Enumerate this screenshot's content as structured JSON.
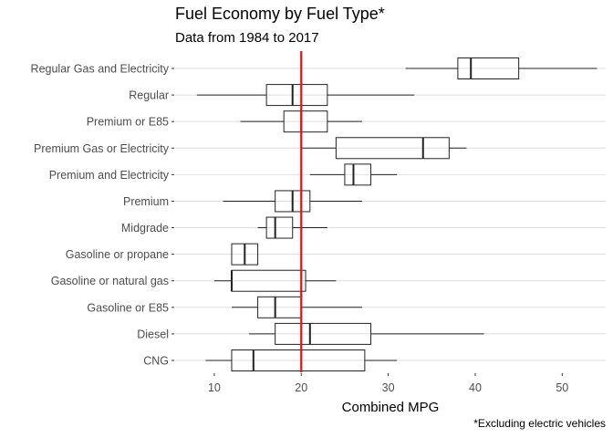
{
  "chart_data": {
    "type": "boxplot",
    "title": "Fuel Economy by Fuel Type*",
    "subtitle": "Data from 1984 to 2017",
    "xlabel": "Combined MPG",
    "ylabel": "",
    "caption": "*Excluding electric vehicles",
    "xlim": [
      5.5,
      55
    ],
    "xticks": [
      10,
      20,
      30,
      40,
      50
    ],
    "grid": "horizontal",
    "reference_line": {
      "value": 20,
      "color": "#e8100a"
    },
    "categories": [
      "Regular Gas and Electricity",
      "Regular",
      "Premium or E85",
      "Premium Gas or Electricity",
      "Premium and Electricity",
      "Premium",
      "Midgrade",
      "Gasoline or propane",
      "Gasoline or natural gas",
      "Gasoline or E85",
      "Diesel",
      "CNG"
    ],
    "boxes": [
      {
        "category": "Regular Gas and Electricity",
        "min": 32,
        "q1": 38,
        "median": 39.5,
        "q3": 45,
        "max": 54
      },
      {
        "category": "Regular",
        "min": 8,
        "q1": 16,
        "median": 19,
        "q3": 23,
        "max": 33
      },
      {
        "category": "Premium or E85",
        "min": 13,
        "q1": 18,
        "median": 20,
        "q3": 23,
        "max": 27
      },
      {
        "category": "Premium Gas or Electricity",
        "min": 20,
        "q1": 24,
        "median": 34,
        "q3": 37,
        "max": 39
      },
      {
        "category": "Premium and Electricity",
        "min": 21,
        "q1": 25,
        "median": 26,
        "q3": 28,
        "max": 31
      },
      {
        "category": "Premium",
        "min": 11,
        "q1": 17,
        "median": 19,
        "q3": 21,
        "max": 27
      },
      {
        "category": "Midgrade",
        "min": 15,
        "q1": 16,
        "median": 17,
        "q3": 19,
        "max": 23
      },
      {
        "category": "Gasoline or propane",
        "min": 12,
        "q1": 12,
        "median": 13.5,
        "q3": 15,
        "max": 15
      },
      {
        "category": "Gasoline or natural gas",
        "min": 10,
        "q1": 12,
        "median": 12,
        "q3": 20.5,
        "max": 24
      },
      {
        "category": "Gasoline or E85",
        "min": 12,
        "q1": 15,
        "median": 17,
        "q3": 20,
        "max": 27
      },
      {
        "category": "Diesel",
        "min": 14,
        "q1": 17,
        "median": 21,
        "q3": 28,
        "max": 41
      },
      {
        "category": "CNG",
        "min": 9,
        "q1": 12,
        "median": 14.5,
        "q3": 27.3,
        "max": 31
      }
    ]
  }
}
